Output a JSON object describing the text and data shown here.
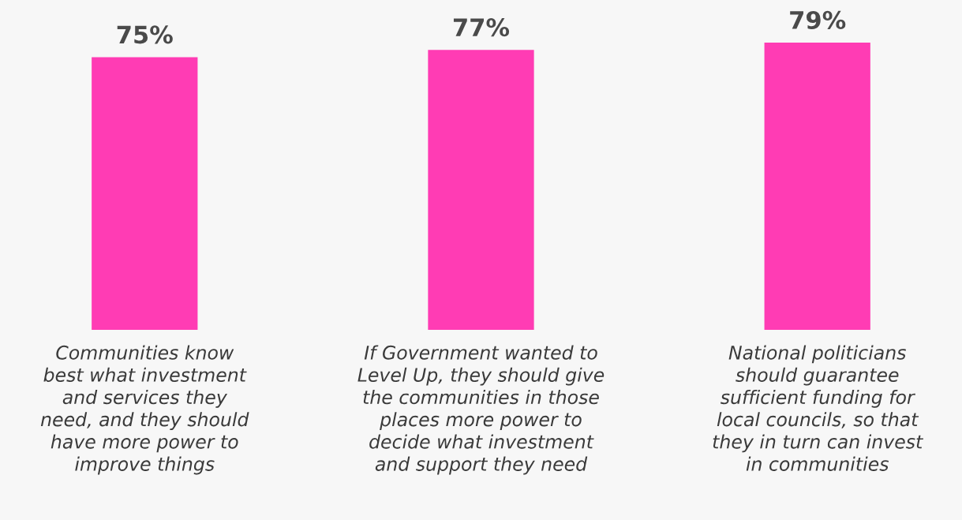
{
  "chart_data": {
    "type": "bar",
    "categories": [
      "Communities know\nbest what investment\nand services they\nneed, and they should\nhave more power to\nimprove things",
      "If Government wanted to\nLevel Up, they should give\nthe communities in those\nplaces more power to\ndecide what investment\nand support they need",
      "National politicians\nshould guarantee\nsufficient funding for\nlocal councils, so that\nthey in turn can invest\nin communities"
    ],
    "values": [
      75,
      77,
      79
    ],
    "value_labels": [
      "75%",
      "77%",
      "79%"
    ],
    "color": "#ff3cb4",
    "grid": false,
    "legend": false
  }
}
